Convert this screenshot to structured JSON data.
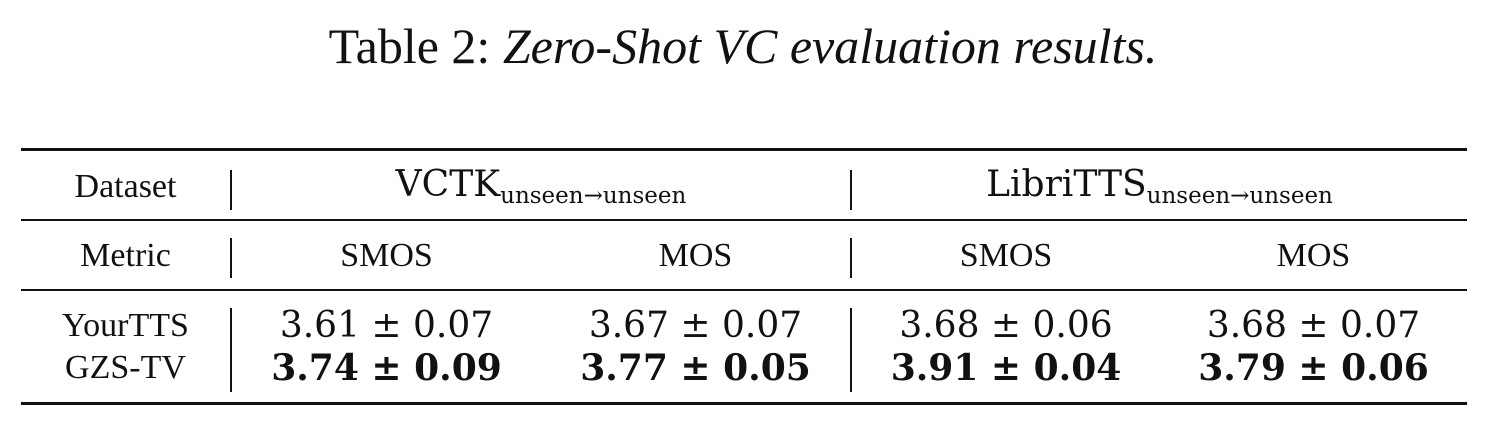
{
  "caption": {
    "prefix": "Table 2:",
    "title": "Zero-Shot VC evaluation results."
  },
  "table": {
    "row_header_label": "Dataset",
    "metric_label": "Metric",
    "groups": [
      {
        "name": "VCTK",
        "subscript": "unseen→unseen"
      },
      {
        "name": "LibriTTS",
        "subscript": "unseen→unseen"
      }
    ],
    "metrics": [
      "SMOS",
      "MOS",
      "SMOS",
      "MOS"
    ],
    "rows": [
      {
        "model": "YourTTS",
        "bold": false,
        "values": [
          "3.61 ± 0.07",
          "3.67 ± 0.07",
          "3.68 ± 0.06",
          "3.68 ± 0.07"
        ]
      },
      {
        "model": "GZS-TV",
        "bold": true,
        "values": [
          "3.74 ± 0.09",
          "3.77 ± 0.05",
          "3.91 ± 0.04",
          "3.79 ± 0.06"
        ]
      }
    ]
  }
}
